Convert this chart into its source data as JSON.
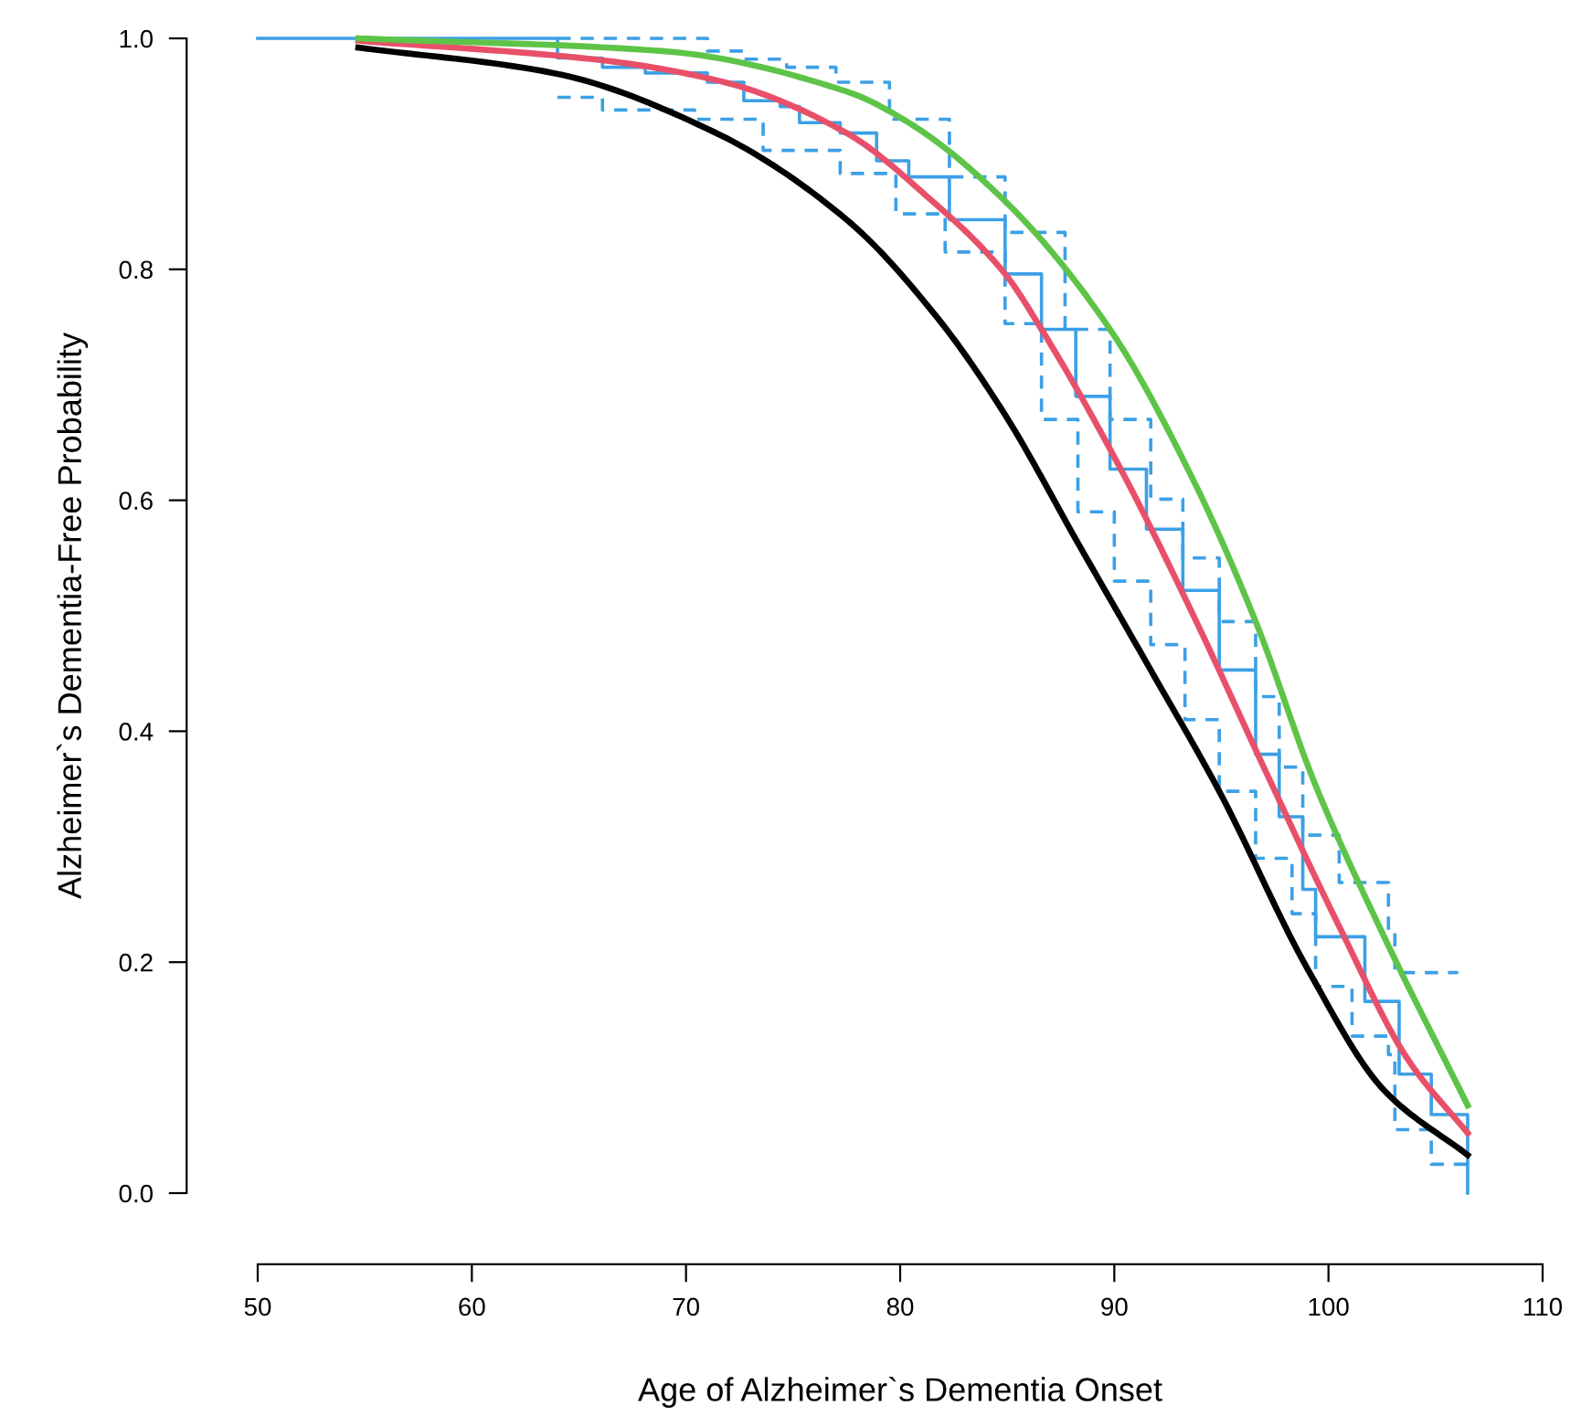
{
  "chart_data": {
    "type": "line",
    "xlabel": "Age of Alzheimer`s Dementia Onset",
    "ylabel": "Alzheimer`s Dementia-Free Probability",
    "xlim": [
      50,
      110
    ],
    "ylim": [
      0,
      1
    ],
    "xticks": [
      50,
      60,
      70,
      80,
      90,
      100,
      110
    ],
    "yticks": [
      {
        "value": 0,
        "label": "0.0"
      },
      {
        "value": 0.2,
        "label": "0.2"
      },
      {
        "value": 0.4,
        "label": "0.4"
      },
      {
        "value": 0.6,
        "label": "0.6"
      },
      {
        "value": 0.8,
        "label": "0.8"
      },
      {
        "value": 1,
        "label": "1.0"
      }
    ],
    "grid": false,
    "series": [
      {
        "type": "step",
        "color": "#3ca0e6",
        "line_style": "solid",
        "x": [
          50,
          64.0,
          66.1,
          68.1,
          71.0,
          72.7,
          74.4,
          75.3,
          77.2,
          78.9,
          80.4,
          82.3,
          84.9,
          86.6,
          88.2,
          89.8,
          91.5,
          93.2,
          94.9,
          96.6,
          97.7,
          98.8,
          99.4,
          101.7,
          103.3,
          104.8,
          106.5
        ],
        "values": [
          1.0,
          0.983,
          0.975,
          0.97,
          0.962,
          0.946,
          0.941,
          0.927,
          0.918,
          0.894,
          0.88,
          0.843,
          0.796,
          0.748,
          0.69,
          0.627,
          0.575,
          0.522,
          0.453,
          0.38,
          0.326,
          0.263,
          0.222,
          0.166,
          0.103,
          0.068,
          0.0
        ]
      },
      {
        "type": "step",
        "color": "#3ca0e6",
        "line_style": "dashed",
        "x": [
          64.0,
          71.0,
          72.7,
          74.7,
          77.0,
          79.5,
          82.3,
          84.9,
          87.7,
          89.8,
          91.7,
          93.2,
          94.9,
          96.6,
          97.7,
          98.8,
          100.5,
          102.8,
          103.1,
          106.0
        ],
        "values": [
          1.0,
          0.989,
          0.982,
          0.975,
          0.962,
          0.93,
          0.88,
          0.832,
          0.748,
          0.67,
          0.601,
          0.55,
          0.495,
          0.43,
          0.369,
          0.31,
          0.269,
          0.226,
          0.191,
          0.19
        ]
      },
      {
        "type": "step",
        "color": "#3ca0e6",
        "line_style": "dashed",
        "x": [
          64.0,
          66.1,
          70.4,
          73.6,
          77.2,
          79.8,
          82.1,
          84.9,
          86.6,
          88.3,
          90.0,
          91.7,
          93.3,
          94.9,
          96.6,
          98.3,
          99.4,
          101.1,
          102.8,
          103.1,
          104.8,
          106.5
        ],
        "values": [
          0.949,
          0.938,
          0.93,
          0.903,
          0.883,
          0.848,
          0.815,
          0.753,
          0.67,
          0.59,
          0.53,
          0.475,
          0.41,
          0.348,
          0.29,
          0.242,
          0.179,
          0.136,
          0.12,
          0.055,
          0.025,
          0.025
        ]
      },
      {
        "color": "#000000",
        "line_style": "solid",
        "x": [
          54.7,
          63.8,
          71.3,
          77.5,
          81.7,
          84.9,
          88.3,
          91.7,
          94.9,
          99.0,
          102.6,
          106.5
        ],
        "values": [
          0.992,
          0.97,
          0.919,
          0.843,
          0.759,
          0.674,
          0.563,
          0.453,
          0.348,
          0.195,
          0.089,
          0.033
        ]
      },
      {
        "color": "#e8506a",
        "line_style": "solid",
        "x": [
          54.7,
          66.1,
          71.8,
          77.5,
          81.2,
          84.9,
          86.6,
          90.3,
          93.7,
          97.1,
          100.5,
          103.7,
          106.5
        ],
        "values": [
          0.998,
          0.981,
          0.962,
          0.918,
          0.864,
          0.796,
          0.748,
          0.627,
          0.5,
          0.364,
          0.231,
          0.116,
          0.052
        ]
      },
      {
        "color": "#5ec448",
        "line_style": "solid",
        "x": [
          54.7,
          68.9,
          77.5,
          80.4,
          84.9,
          89.8,
          93.7,
          96.6,
          99.4,
          102.6,
          106.5
        ],
        "values": [
          1.0,
          0.989,
          0.954,
          0.927,
          0.859,
          0.748,
          0.617,
          0.495,
          0.353,
          0.222,
          0.076
        ]
      }
    ]
  }
}
